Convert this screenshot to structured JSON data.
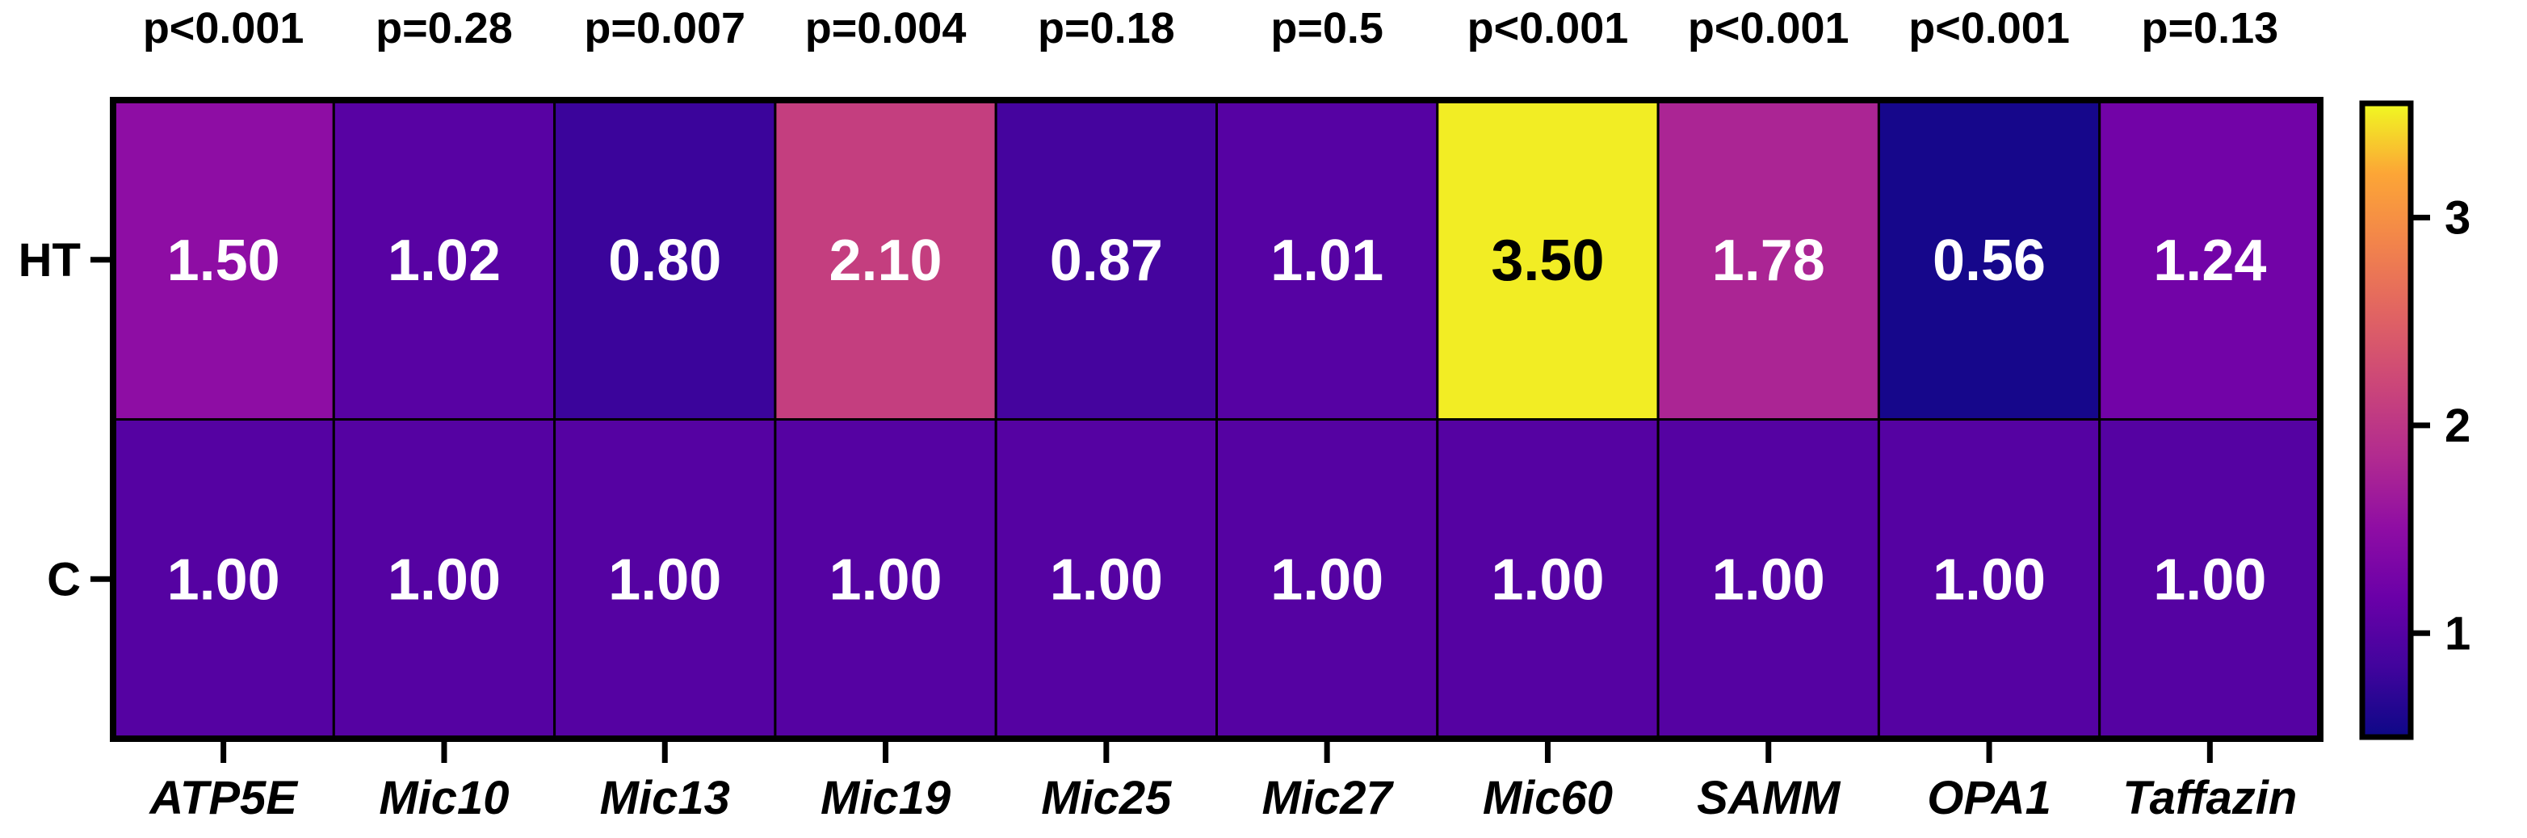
{
  "chart_data": {
    "type": "heatmap",
    "title": "",
    "xlabel": "",
    "ylabel": "",
    "columns": [
      "ATP5E",
      "Mic10",
      "Mic13",
      "Mic19",
      "Mic25",
      "Mic27",
      "Mic60",
      "SAMM",
      "OPA1",
      "Taffazin"
    ],
    "rows": [
      "HT",
      "C"
    ],
    "p_values": [
      "p<0.001",
      "p=0.28",
      "p=0.007",
      "p=0.004",
      "p=0.18",
      "p=0.5",
      "p<0.001",
      "p<0.001",
      "p<0.001",
      "p=0.13"
    ],
    "values": [
      [
        1.5,
        1.02,
        0.8,
        2.1,
        0.87,
        1.01,
        3.5,
        1.78,
        0.56,
        1.24
      ],
      [
        1.0,
        1.0,
        1.0,
        1.0,
        1.0,
        1.0,
        1.0,
        1.0,
        1.0,
        1.0
      ]
    ],
    "value_labels": [
      [
        "1.50",
        "1.02",
        "0.80",
        "2.10",
        "0.87",
        "1.01",
        "3.50",
        "1.78",
        "0.56",
        "1.24"
      ],
      [
        "1.00",
        "1.00",
        "1.00",
        "1.00",
        "1.00",
        "1.00",
        "1.00",
        "1.00",
        "1.00",
        "1.00"
      ]
    ],
    "colorscale": "plasma",
    "color_range": [
      0.5,
      3.55
    ],
    "colorbar": {
      "ticks": [
        1,
        2,
        3
      ],
      "tick_labels": [
        "1",
        "2",
        "3"
      ],
      "position": "right"
    },
    "grid": true,
    "legend": "none"
  }
}
